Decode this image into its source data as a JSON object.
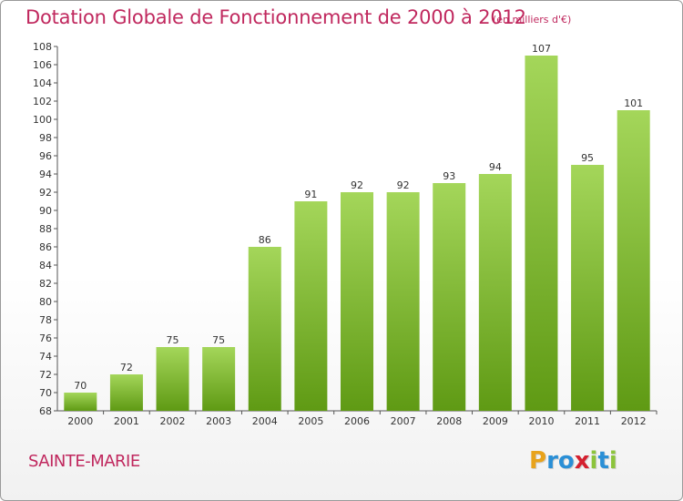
{
  "title": "Dotation Globale de Fonctionnement de 2000 à 2012",
  "unit_note": "(en milliers d'€)",
  "commune": "SAINTE-MARIE",
  "brand": {
    "letters": [
      "P",
      "r",
      "o",
      "x",
      "i",
      "t",
      "i"
    ],
    "colors": [
      "#e8a31c",
      "#2a8fd6",
      "#2a8fd6",
      "#d4202f",
      "#8cc43c",
      "#2a8fd6",
      "#8cc43c"
    ]
  },
  "colors": {
    "title": "#c0285e",
    "bar_light": "#a4d65a",
    "bar_dark": "#5f9a14",
    "axis": "#555555"
  },
  "chart_data": {
    "type": "bar",
    "title": "Dotation Globale de Fonctionnement de 2000 à 2012",
    "subtitle": "(en milliers d'€)",
    "xlabel": "",
    "ylabel": "",
    "categories": [
      "2000",
      "2001",
      "2002",
      "2003",
      "2004",
      "2005",
      "2006",
      "2007",
      "2008",
      "2009",
      "2010",
      "2011",
      "2012"
    ],
    "values": [
      70,
      72,
      75,
      75,
      86,
      91,
      92,
      92,
      93,
      94,
      107,
      95,
      101
    ],
    "ylim": [
      68,
      108
    ],
    "yticks": [
      68,
      70,
      72,
      74,
      76,
      78,
      80,
      82,
      84,
      86,
      88,
      90,
      92,
      94,
      96,
      98,
      100,
      102,
      104,
      106,
      108
    ],
    "grid": false,
    "legend": "none"
  }
}
